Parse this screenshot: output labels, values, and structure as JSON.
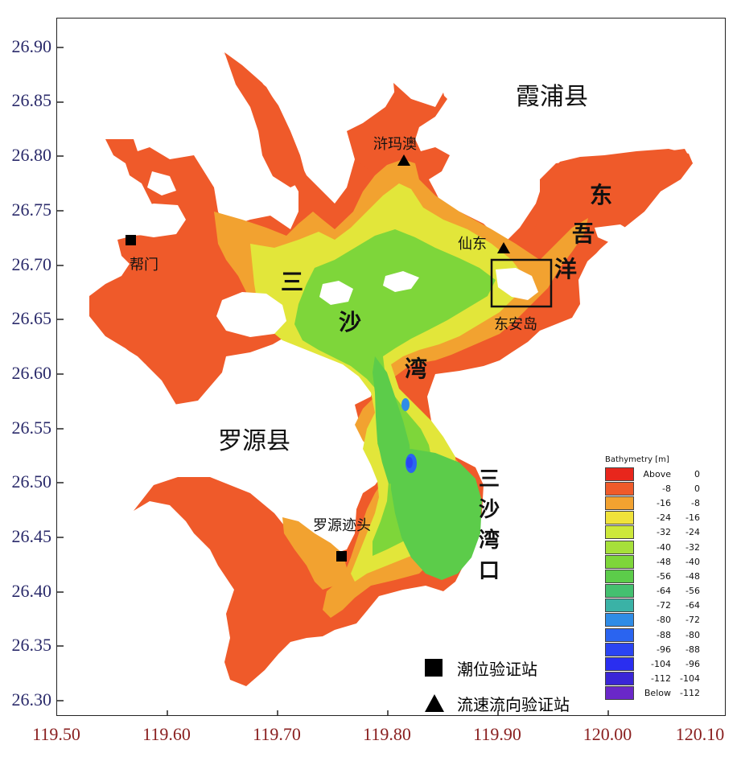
{
  "axes": {
    "y_ticks": [
      "26.90",
      "26.85",
      "26.80",
      "26.75",
      "26.70",
      "26.65",
      "26.60",
      "26.55",
      "26.50",
      "26.45",
      "26.40",
      "26.35",
      "26.30"
    ],
    "x_ticks": [
      "119.50",
      "119.60",
      "119.70",
      "119.80",
      "119.90",
      "120.00",
      "120.10"
    ]
  },
  "place_labels": {
    "xiapu": "霞浦县",
    "luoyuan": "罗源县",
    "xuyuao": "浒玛澳",
    "bangmen": "帮门",
    "xiandong": "仙东",
    "donganda": "东安岛",
    "luoyuan_jitou": "罗源迹头"
  },
  "vertical_labels": {
    "dongwuyang": [
      "东",
      "吾",
      "洋"
    ],
    "sanshawan": [
      "三",
      "沙",
      "湾"
    ],
    "sanshawan_kou": [
      "三",
      "沙",
      "湾",
      "口"
    ]
  },
  "legend": {
    "title": "Bathymetry [m]",
    "rows": [
      {
        "a": "Above",
        "b": "0",
        "color": "#e8261c"
      },
      {
        "a": "-8",
        "b": "0",
        "color": "#ef5a2a"
      },
      {
        "a": "-16",
        "b": "-8",
        "color": "#f2a230"
      },
      {
        "a": "-24",
        "b": "-16",
        "color": "#f0e23a"
      },
      {
        "a": "-32",
        "b": "-24",
        "color": "#cde83a"
      },
      {
        "a": "-40",
        "b": "-32",
        "color": "#a6e03a"
      },
      {
        "a": "-48",
        "b": "-40",
        "color": "#7ed63a"
      },
      {
        "a": "-56",
        "b": "-48",
        "color": "#5ccc4a"
      },
      {
        "a": "-64",
        "b": "-56",
        "color": "#44c070"
      },
      {
        "a": "-72",
        "b": "-64",
        "color": "#3ab2a6"
      },
      {
        "a": "-80",
        "b": "-72",
        "color": "#2f8ce6"
      },
      {
        "a": "-88",
        "b": "-80",
        "color": "#2a64f0"
      },
      {
        "a": "-96",
        "b": "-88",
        "color": "#2a44f2"
      },
      {
        "a": "-104",
        "b": "-96",
        "color": "#2a2ef0"
      },
      {
        "a": "-112",
        "b": "-104",
        "color": "#3a26d6"
      },
      {
        "a": "Below",
        "b": "-112",
        "color": "#6a28c8"
      }
    ]
  },
  "symbol_legend": {
    "tide_station": "潮位验证站",
    "current_station": "流速流向验证站"
  }
}
